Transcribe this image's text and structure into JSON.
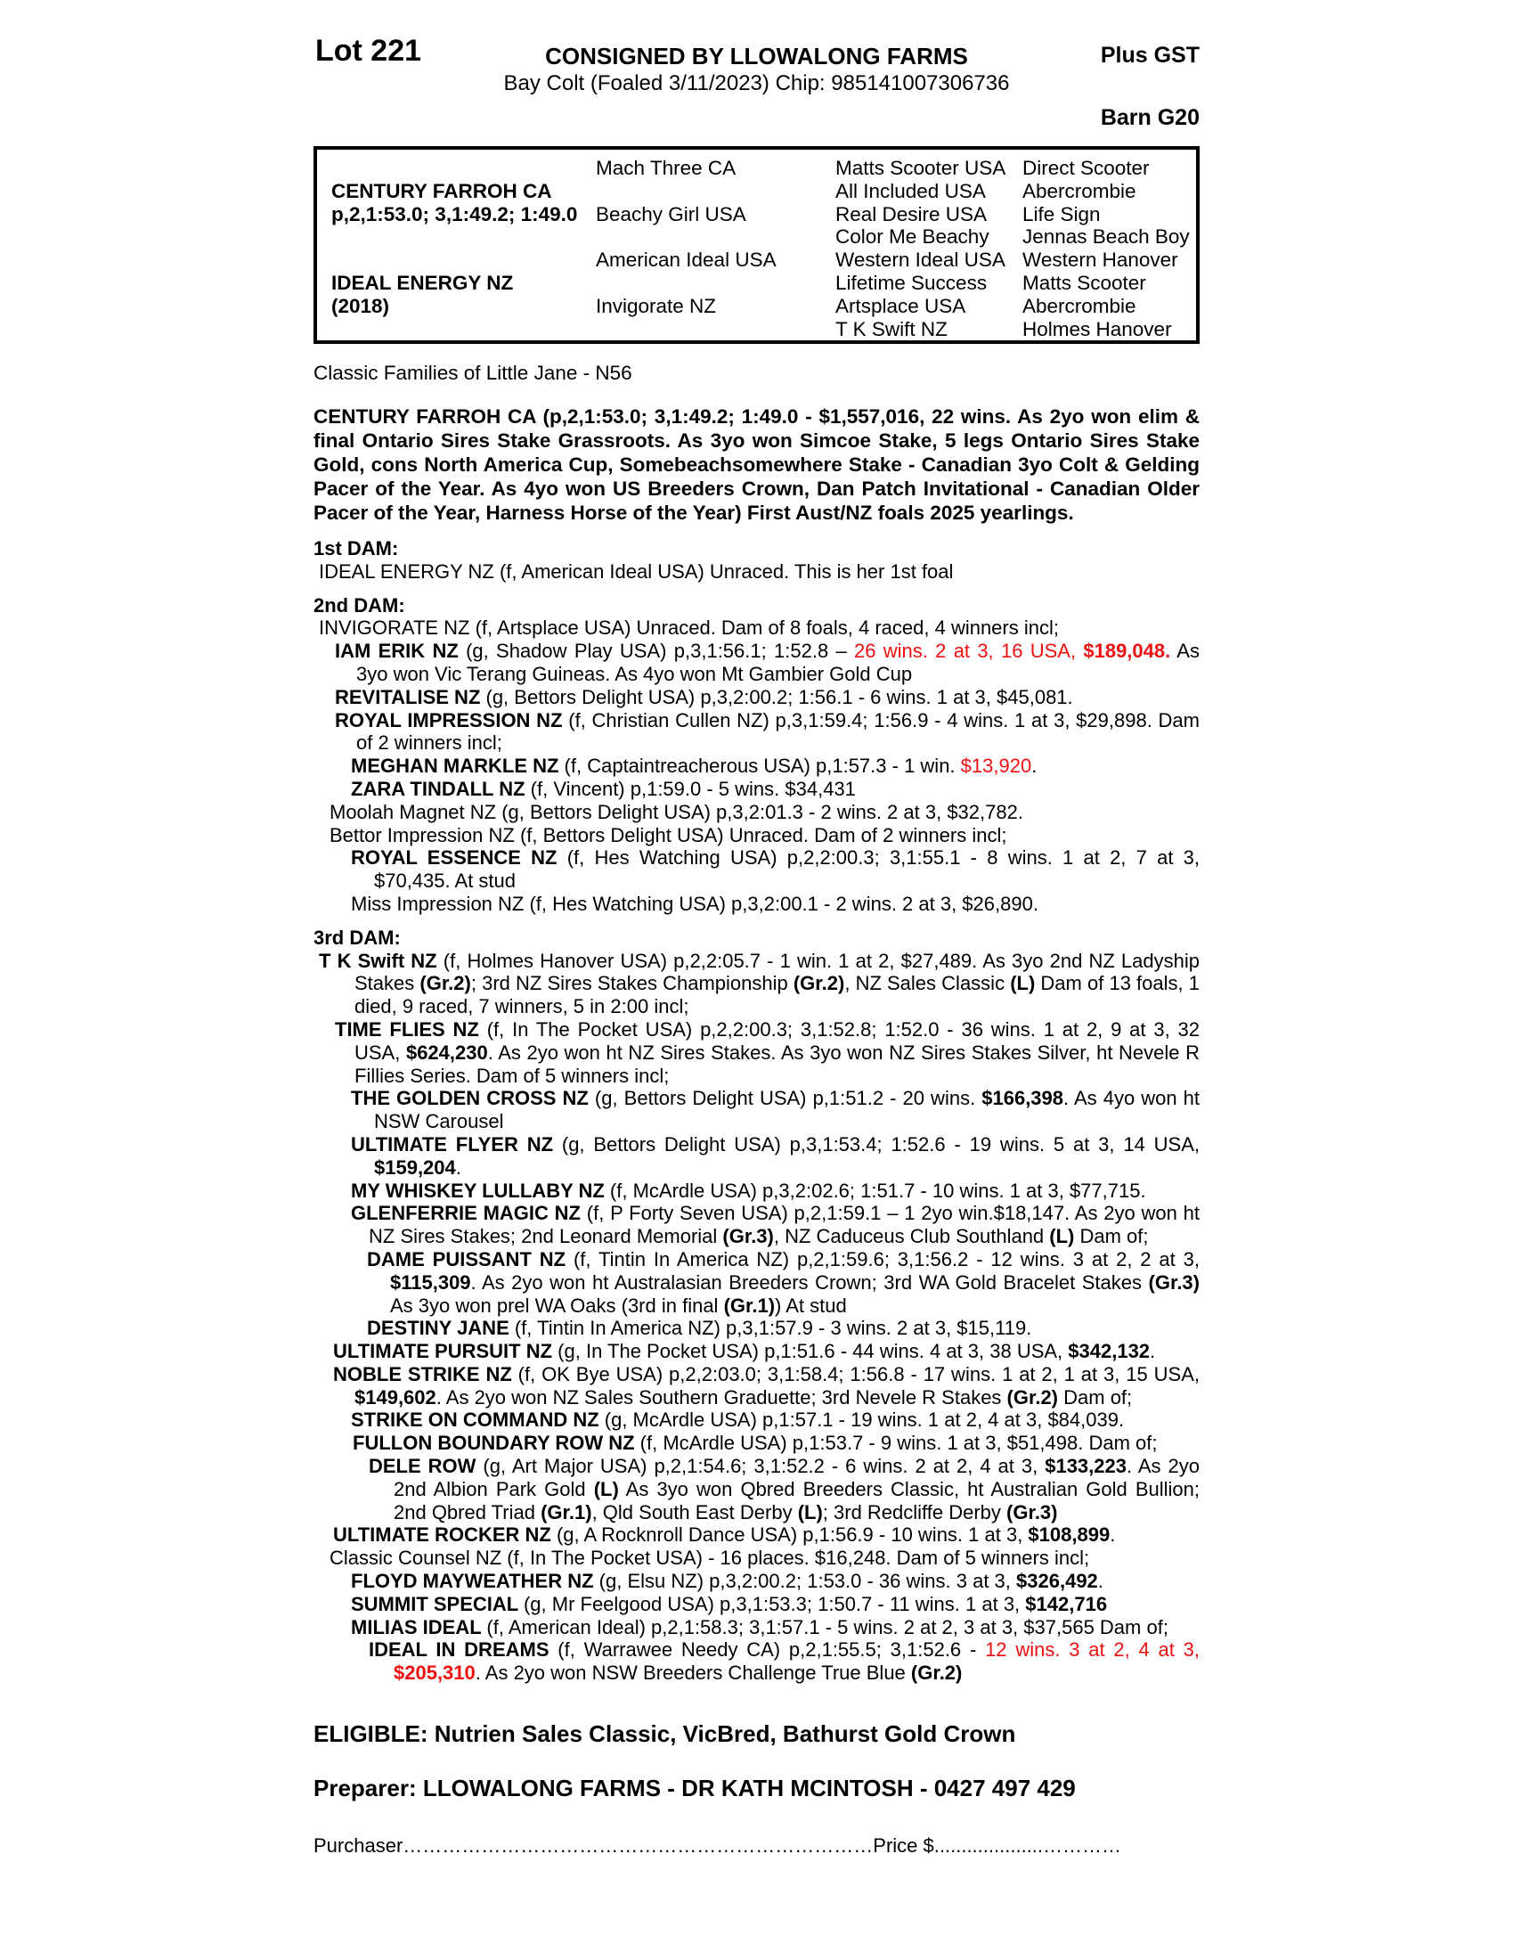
{
  "page": {
    "background": "#ffffff",
    "accent_red": "#ee1111"
  },
  "header": {
    "lot": "Lot 221",
    "consigned": "CONSIGNED BY LLOWALONG FARMS",
    "plus_gst": "Plus GST",
    "subtitle": "Bay Colt (Foaled 3/11/2023) Chip: 985141007306736",
    "barn": "Barn G20"
  },
  "pedigree_box": {
    "rows": 8,
    "columns": [
      {
        "name": "subject",
        "cells": [
          {
            "row": 2,
            "t": "CENTURY FARROH CA",
            "b": true
          },
          {
            "row": 3,
            "t": "p,2,1:53.0; 3,1:49.2; 1:49.0",
            "b": true
          },
          {
            "row": 6,
            "t": "IDEAL ENERGY NZ",
            "b": true
          },
          {
            "row": 7,
            "t": "(2018)",
            "b": true
          }
        ]
      },
      {
        "name": "parents",
        "cells": [
          {
            "row": 1,
            "t": "Mach Three CA"
          },
          {
            "row": 3,
            "t": "Beachy Girl USA"
          },
          {
            "row": 5,
            "t": "American Ideal USA"
          },
          {
            "row": 7,
            "t": "Invigorate NZ"
          }
        ]
      },
      {
        "name": "grandparents",
        "cells": [
          {
            "row": 1,
            "t": "Matts Scooter USA"
          },
          {
            "row": 2,
            "t": "All Included USA"
          },
          {
            "row": 3,
            "t": "Real Desire USA"
          },
          {
            "row": 4,
            "t": "Color Me Beachy"
          },
          {
            "row": 5,
            "t": "Western Ideal USA"
          },
          {
            "row": 6,
            "t": "Lifetime Success"
          },
          {
            "row": 7,
            "t": "Artsplace USA"
          },
          {
            "row": 8,
            "t": "T K Swift NZ"
          }
        ]
      },
      {
        "name": "great-grandparents",
        "cells": [
          {
            "row": 1,
            "t": "Direct Scooter"
          },
          {
            "row": 2,
            "t": "Abercrombie"
          },
          {
            "row": 3,
            "t": "Life Sign"
          },
          {
            "row": 4,
            "t": "Jennas Beach Boy"
          },
          {
            "row": 5,
            "t": "Western Hanover"
          },
          {
            "row": 6,
            "t": "Matts Scooter"
          },
          {
            "row": 7,
            "t": "Abercrombie"
          },
          {
            "row": 8,
            "t": "Holmes Hanover"
          }
        ]
      }
    ]
  },
  "family_note": "Classic Families of Little Jane - N56",
  "sire_paragraph": "CENTURY FARROH CA (p,2,1:53.0; 3,1:49.2; 1:49.0 - $1,557,016, 22 wins. As 2yo won elim & final Ontario Sires Stake Grassroots. As 3yo won Simcoe Stake, 5 legs Ontario Sires Stake Gold, cons North America Cup, Somebeachsomewhere Stake - Canadian 3yo Colt & Gelding Pacer of the Year. As 4yo won US Breeders Crown, Dan Patch Invitational - Canadian Older Pacer of the Year, Harness Horse of the Year) First Aust/NZ foals 2025 yearlings.",
  "pedigree_text": [
    {
      "hdr": true,
      "g": 4,
      "seg": [
        {
          "t": "1st DAM:",
          "s": "b"
        }
      ]
    },
    {
      "i": 6,
      "h": 24,
      "seg": [
        {
          "t": "IDEAL ENERGY NZ (f, American Ideal USA) Unraced. This is her 1st foal"
        }
      ]
    },
    {
      "hdr": true,
      "g": 12,
      "seg": [
        {
          "t": "2nd DAM:",
          "s": "b"
        }
      ]
    },
    {
      "i": 6,
      "h": 24,
      "seg": [
        {
          "t": "INVIGORATE NZ (f, Artsplace USA) Unraced. Dam of 8 foals, 4 raced, 4 winners incl;"
        }
      ]
    },
    {
      "i": 24,
      "h": 24,
      "seg": [
        {
          "t": "IAM ERIK NZ ",
          "s": "b"
        },
        {
          "t": "(g, Shadow Play USA) p,3,1:56.1; 1:52.8 – "
        },
        {
          "t": "26 wins. 2 at 3, 16 USA, ",
          "s": "r"
        },
        {
          "t": "$189,048.",
          "s": "br"
        },
        {
          "t": " As 3yo won Vic Terang Guineas. As 4yo won Mt Gambier Gold Cup"
        }
      ]
    },
    {
      "i": 24,
      "h": 24,
      "seg": [
        {
          "t": "REVITALISE NZ ",
          "s": "b"
        },
        {
          "t": "(g, Bettors Delight USA) p,3,2:00.2; 1:56.1 - 6 wins. 1 at 3, $45,081."
        }
      ]
    },
    {
      "i": 24,
      "h": 24,
      "seg": [
        {
          "t": "ROYAL IMPRESSION NZ ",
          "s": "b"
        },
        {
          "t": "(f, Christian Cullen NZ) p,3,1:59.4; 1:56.9 - 4 wins. 1 at 3, $29,898. Dam of 2 winners incl;"
        }
      ]
    },
    {
      "i": 42,
      "h": 24,
      "seg": [
        {
          "t": "MEGHAN MARKLE NZ ",
          "s": "b"
        },
        {
          "t": "(f, Captaintreacherous USA) p,1:57.3 - 1 win. "
        },
        {
          "t": "$13,920",
          "s": "r"
        },
        {
          "t": "."
        }
      ]
    },
    {
      "i": 42,
      "h": 24,
      "seg": [
        {
          "t": "ZARA TINDALL NZ ",
          "s": "b"
        },
        {
          "t": "(f, Vincent) p,1:59.0 - 5 wins. $34,431"
        }
      ]
    },
    {
      "i": 18,
      "h": 24,
      "seg": [
        {
          "t": "Moolah Magnet NZ (g, Bettors Delight USA) p,3,2:01.3 - 2 wins. 2 at 3, $32,782."
        }
      ]
    },
    {
      "i": 18,
      "h": 24,
      "seg": [
        {
          "t": "Bettor Impression NZ (f, Bettors Delight USA) Unraced. Dam of 2 winners incl;"
        }
      ]
    },
    {
      "i": 42,
      "h": 26,
      "seg": [
        {
          "t": "ROYAL ESSENCE NZ ",
          "s": "b"
        },
        {
          "t": "(f, Hes Watching USA) p,2,2:00.3; 3,1:55.1 - 8 wins. 1 at 2, 7 at 3, $70,435. At stud"
        }
      ]
    },
    {
      "i": 42,
      "h": 24,
      "seg": [
        {
          "t": "Miss Impression NZ (f, Hes Watching USA) p,3,2:00.1 - 2 wins. 2 at 3, $26,890."
        }
      ]
    },
    {
      "hdr": true,
      "g": 12,
      "seg": [
        {
          "t": "3rd DAM:",
          "s": "b"
        }
      ]
    },
    {
      "i": 6,
      "h": 40,
      "seg": [
        {
          "t": "T K Swift NZ ",
          "s": "b"
        },
        {
          "t": "(f, Holmes Hanover USA) p,2,2:05.7 - 1 win. 1 at 2, $27,489. As 3yo 2nd NZ Ladyship Stakes "
        },
        {
          "t": "(Gr.2)",
          "s": "b"
        },
        {
          "t": "; 3rd NZ Sires Stakes Championship "
        },
        {
          "t": "(Gr.2)",
          "s": "b"
        },
        {
          "t": ", NZ Sales Classic "
        },
        {
          "t": "(L)",
          "s": "b"
        },
        {
          "t": " Dam of 13 foals, 1 died, 9 raced, 7 winners, 5 in 2:00 incl;"
        }
      ]
    },
    {
      "i": 24,
      "h": 22,
      "seg": [
        {
          "t": "TIME FLIES NZ ",
          "s": "b"
        },
        {
          "t": "(f, In The Pocket USA) p,2,2:00.3; 3,1:52.8; 1:52.0 - 36 wins. 1 at 2, 9 at 3, 32 USA, "
        },
        {
          "t": "$624,230",
          "s": "b"
        },
        {
          "t": ". As 2yo won ht NZ Sires Stakes. As 3yo won NZ Sires Stakes Silver, ht Nevele R Fillies Series. Dam of 5 winners incl;"
        }
      ]
    },
    {
      "i": 42,
      "h": 26,
      "seg": [
        {
          "t": "THE GOLDEN CROSS NZ ",
          "s": "b"
        },
        {
          "t": "(g, Bettors Delight USA) p,1:51.2 - 20 wins. "
        },
        {
          "t": "$166,398",
          "s": "b"
        },
        {
          "t": ". As 4yo won ht NSW Carousel"
        }
      ]
    },
    {
      "i": 42,
      "h": 26,
      "seg": [
        {
          "t": "ULTIMATE FLYER NZ ",
          "s": "b"
        },
        {
          "t": "(g, Bettors Delight USA) p,3,1:53.4; 1:52.6 - 19 wins. 5 at 3, 14 USA, "
        },
        {
          "t": "$159,204",
          "s": "b"
        },
        {
          "t": "."
        }
      ]
    },
    {
      "i": 42,
      "h": 24,
      "seg": [
        {
          "t": "MY WHISKEY LULLABY NZ ",
          "s": "b"
        },
        {
          "t": "(f, McArdle USA) p,3,2:02.6; 1:51.7 - 10 wins. 1 at 3, $77,715."
        }
      ]
    },
    {
      "i": 42,
      "h": 20,
      "seg": [
        {
          "t": "GLENFERRIE MAGIC NZ ",
          "s": "b"
        },
        {
          "t": "(f, P Forty Seven USA) p,2,1:59.1 – 1 2yo win.$18,147. As 2yo won ht NZ Sires Stakes; 2nd Leonard Memorial "
        },
        {
          "t": "(Gr.3)",
          "s": "b"
        },
        {
          "t": ", NZ Caduceus Club Southland "
        },
        {
          "t": "(L)",
          "s": "b"
        },
        {
          "t": " Dam of;"
        }
      ]
    },
    {
      "i": 60,
      "h": 26,
      "seg": [
        {
          "t": "DAME PUISSANT NZ ",
          "s": "b"
        },
        {
          "t": "(f, Tintin In America NZ) p,2,1:59.6; 3,1:56.2 - 12 wins. 3 at 2, 2 at 3, "
        },
        {
          "t": "$115,309",
          "s": "b"
        },
        {
          "t": ". As 2yo won ht Australasian Breeders Crown; 3rd WA Gold Bracelet Stakes "
        },
        {
          "t": "(Gr.3)",
          "s": "b"
        },
        {
          "t": " As 3yo won prel WA Oaks (3rd in final "
        },
        {
          "t": "(Gr.1)",
          "s": "b"
        },
        {
          "t": ") At stud"
        }
      ]
    },
    {
      "i": 60,
      "h": 24,
      "seg": [
        {
          "t": "DESTINY JANE ",
          "s": "b"
        },
        {
          "t": "(f, Tintin In America NZ) p,3,1:57.9 - 3 wins. 2 at 3, $15,119."
        }
      ]
    },
    {
      "i": 22,
      "h": 24,
      "seg": [
        {
          "t": "ULTIMATE PURSUIT NZ ",
          "s": "b"
        },
        {
          "t": "(g, In The Pocket USA) p,1:51.6 - 44 wins. 4 at 3, 38 USA, "
        },
        {
          "t": "$342,132",
          "s": "b"
        },
        {
          "t": "."
        }
      ]
    },
    {
      "i": 22,
      "h": 24,
      "seg": [
        {
          "t": "NOBLE STRIKE NZ ",
          "s": "b"
        },
        {
          "t": "(f, OK Bye USA) p,2,2:03.0; 3,1:58.4; 1:56.8 - 17 wins. 1 at 2, 1 at 3, 15 USA, "
        },
        {
          "t": "$149,602",
          "s": "b"
        },
        {
          "t": ". As 2yo won NZ Sales Southern Graduette; 3rd Nevele R Stakes "
        },
        {
          "t": "(Gr.2)",
          "s": "b"
        },
        {
          "t": " Dam of;"
        }
      ]
    },
    {
      "i": 42,
      "h": 24,
      "seg": [
        {
          "t": "STRIKE ON COMMAND NZ ",
          "s": "b"
        },
        {
          "t": "(g, McArdle USA) p,1:57.1 - 19 wins. 1 at 2, 4 at 3, $84,039."
        }
      ]
    },
    {
      "i": 44,
      "h": 24,
      "seg": [
        {
          "t": "FULLON BOUNDARY ROW NZ ",
          "s": "b"
        },
        {
          "t": "(f, McArdle USA) p,1:53.7 - 9 wins. 1 at 3, $51,498. Dam of;"
        }
      ]
    },
    {
      "i": 62,
      "h": 28,
      "seg": [
        {
          "t": "DELE ROW ",
          "s": "b"
        },
        {
          "t": "(g, Art Major USA) p,2,1:54.6; 3,1:52.2 - 6 wins. 2 at 2, 4 at 3, "
        },
        {
          "t": "$133,223",
          "s": "b"
        },
        {
          "t": ". As 2yo 2nd Albion Park Gold "
        },
        {
          "t": "(L)",
          "s": "b"
        },
        {
          "t": " As 3yo won Qbred Breeders Classic, ht Australian Gold Bullion; 2nd Qbred Triad "
        },
        {
          "t": "(Gr.1)",
          "s": "b"
        },
        {
          "t": ", Qld South East Derby "
        },
        {
          "t": "(L)",
          "s": "b"
        },
        {
          "t": "; 3rd Redcliffe Derby "
        },
        {
          "t": "(Gr.3)",
          "s": "b"
        }
      ]
    },
    {
      "i": 22,
      "h": 24,
      "seg": [
        {
          "t": "ULTIMATE ROCKER NZ ",
          "s": "b"
        },
        {
          "t": "(g, A Rocknroll Dance USA) p,1:56.9 - 10 wins. 1 at 3, "
        },
        {
          "t": "$108,899",
          "s": "b"
        },
        {
          "t": "."
        }
      ]
    },
    {
      "i": 18,
      "h": 24,
      "seg": [
        {
          "t": "Classic Counsel NZ (f, In The Pocket USA) - 16 places. $16,248. Dam of 5 winners incl;"
        }
      ]
    },
    {
      "i": 42,
      "h": 24,
      "seg": [
        {
          "t": "FLOYD MAYWEATHER NZ ",
          "s": "b"
        },
        {
          "t": "(g, Elsu NZ) p,3,2:00.2; 1:53.0 - 36 wins. 3 at 3, "
        },
        {
          "t": "$326,492",
          "s": "b"
        },
        {
          "t": "."
        }
      ]
    },
    {
      "i": 42,
      "h": 24,
      "seg": [
        {
          "t": "SUMMIT SPECIAL ",
          "s": "b"
        },
        {
          "t": "(g, Mr Feelgood USA) p,3,1:53.3; 1:50.7 - 11 wins. 1 at 3, "
        },
        {
          "t": "$142,716",
          "s": "b"
        }
      ]
    },
    {
      "i": 42,
      "h": 24,
      "seg": [
        {
          "t": "MILIAS IDEAL ",
          "s": "b"
        },
        {
          "t": "(f, American Ideal) p,2,1:58.3; 3,1:57.1 - 5 wins. 2 at 2, 3 at 3, $37,565 Dam of;"
        }
      ]
    },
    {
      "i": 62,
      "h": 28,
      "seg": [
        {
          "t": "IDEAL IN DREAMS ",
          "s": "b"
        },
        {
          "t": "(f, Warrawee Needy CA) p,2,1:55.5; 3,1:52.6 - "
        },
        {
          "t": "12 wins. 3 at 2, 4 at 3, ",
          "s": "r"
        },
        {
          "t": "$205,310",
          "s": "br"
        },
        {
          "t": ". As 2yo won NSW Breeders Challenge True Blue "
        },
        {
          "t": "(Gr.2)",
          "s": "b"
        }
      ]
    }
  ],
  "footer": {
    "eligible": "ELIGIBLE: Nutrien Sales Classic, VicBred, Bathurst Gold Crown",
    "preparer": "Preparer: LLOWALONG FARMS - DR KATH MCINTOSH - 0427 497 429",
    "purchaser_label": "Purchaser",
    "purchaser_dots": "………………………………………………………………",
    "price_label": "Price $",
    "price_dots": "....................…………"
  }
}
